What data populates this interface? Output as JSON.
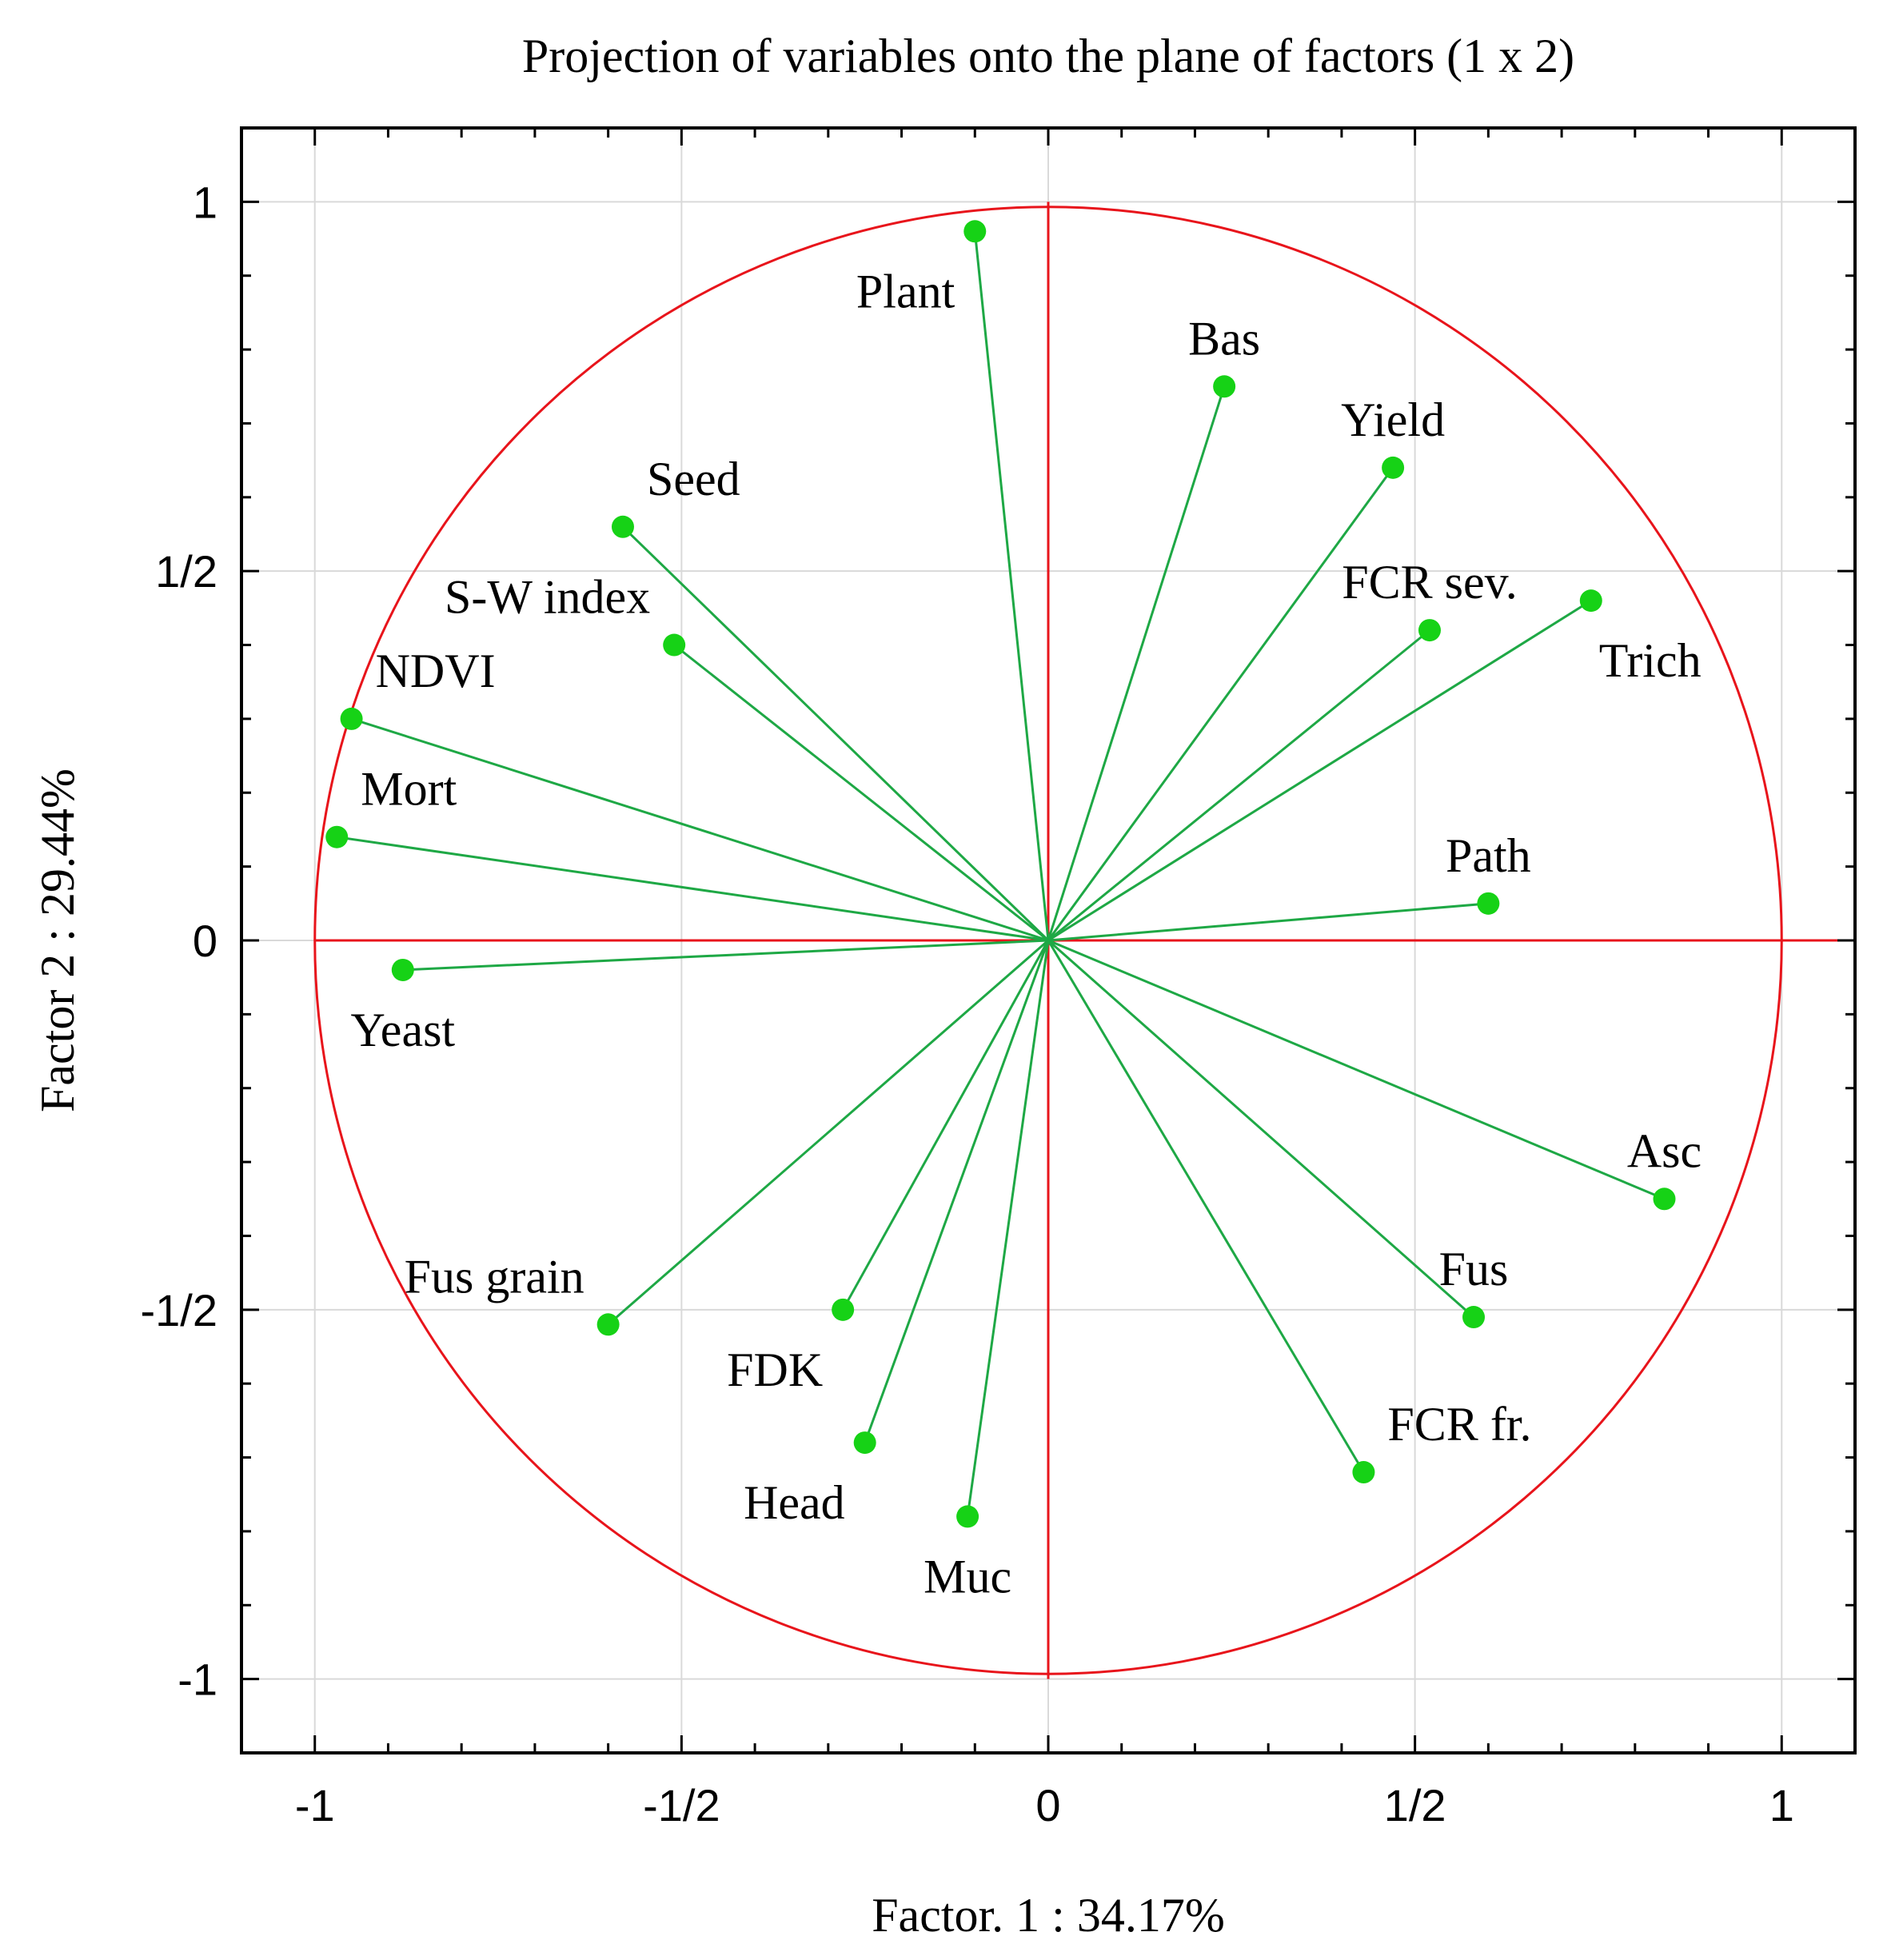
{
  "chart_data": {
    "type": "scatter",
    "subtype": "correlation-circle",
    "title": "Projection of variables onto the plane of factors (1 x 2)",
    "xlabel": "Factor. 1 : 34.17%",
    "ylabel": "Factor 2 : 29.44%",
    "xlim": [
      -1.1,
      1.1
    ],
    "ylim": [
      -1.1,
      1.1
    ],
    "xticks": [
      {
        "value": -1,
        "label": "-1"
      },
      {
        "value": -0.5,
        "label": "-1/2"
      },
      {
        "value": 0,
        "label": "0"
      },
      {
        "value": 0.5,
        "label": "1/2"
      },
      {
        "value": 1,
        "label": "1"
      }
    ],
    "yticks": [
      {
        "value": 1,
        "label": "1"
      },
      {
        "value": 0.5,
        "label": "1/2"
      },
      {
        "value": 0,
        "label": "0"
      },
      {
        "value": -0.5,
        "label": "-1/2"
      },
      {
        "value": -1,
        "label": "-1"
      }
    ],
    "grid": true,
    "unit_circle": true,
    "colors": {
      "circle": "#e8141b",
      "axes": "#e8141b",
      "vectors": "#1ea845",
      "points": "#16d216",
      "grid": "#d9d9d9",
      "frame": "#000000",
      "text": "#000000",
      "leader": "#1a1aff"
    },
    "variables": [
      {
        "name": "Plant",
        "x": -0.1,
        "y": 0.96,
        "label_pos": "below-left"
      },
      {
        "name": "Bas",
        "x": 0.24,
        "y": 0.75,
        "label_pos": "above"
      },
      {
        "name": "Yield",
        "x": 0.47,
        "y": 0.64,
        "label_pos": "above"
      },
      {
        "name": "FCR sev.",
        "x": 0.52,
        "y": 0.42,
        "label_pos": "above"
      },
      {
        "name": "Trich",
        "x": 0.74,
        "y": 0.46,
        "label_pos": "below-right"
      },
      {
        "name": "Seed",
        "x": -0.58,
        "y": 0.56,
        "label_pos": "above-right"
      },
      {
        "name": "S-W index",
        "x": -0.51,
        "y": 0.4,
        "label_pos": "above-left"
      },
      {
        "name": "NDVI",
        "x": -0.95,
        "y": 0.3,
        "label_pos": "above-right"
      },
      {
        "name": "Mort",
        "x": -0.97,
        "y": 0.14,
        "label_pos": "above-right"
      },
      {
        "name": "Path",
        "x": 0.6,
        "y": 0.05,
        "label_pos": "above"
      },
      {
        "name": "Yeast",
        "x": -0.88,
        "y": -0.04,
        "label_pos": "below"
      },
      {
        "name": "Asc",
        "x": 0.84,
        "y": -0.35,
        "label_pos": "above"
      },
      {
        "name": "Fus",
        "x": 0.58,
        "y": -0.51,
        "label_pos": "above"
      },
      {
        "name": "FCR fr.",
        "x": 0.43,
        "y": -0.72,
        "label_pos": "above-right"
      },
      {
        "name": "Fus grain",
        "x": -0.6,
        "y": -0.52,
        "label_pos": "above-left"
      },
      {
        "name": "FDK",
        "x": -0.28,
        "y": -0.5,
        "label_pos": "below-left"
      },
      {
        "name": "Head",
        "x": -0.25,
        "y": -0.68,
        "label_pos": "below-left"
      },
      {
        "name": "Muc",
        "x": -0.11,
        "y": -0.78,
        "label_pos": "below"
      }
    ]
  }
}
